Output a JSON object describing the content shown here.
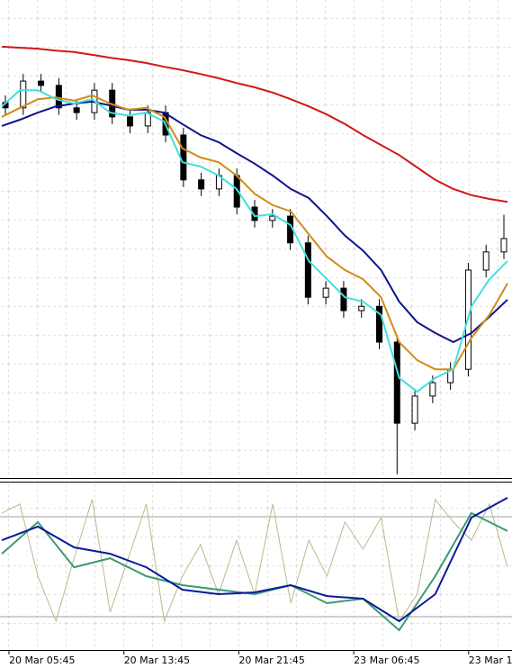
{
  "chart_data": [
    {
      "type": "candlestick",
      "grid": true,
      "ylim": [
        0,
        100
      ],
      "open": [
        78.5,
        77.4,
        83.0,
        82.1,
        77.4,
        76.4,
        81.1,
        75.5,
        73.6,
        76.4,
        71.7,
        62.3,
        60.4,
        63.2,
        56.6,
        53.8,
        54.7,
        49.1,
        37.7,
        39.6,
        34.9,
        35.8,
        28.3,
        11.3,
        17.0,
        19.8,
        22.6,
        43.4,
        47.2
      ],
      "high": [
        80.0,
        84.5,
        84.5,
        83.6,
        78.9,
        82.6,
        82.6,
        77.0,
        77.9,
        77.9,
        73.2,
        63.8,
        64.7,
        64.7,
        58.1,
        56.2,
        56.2,
        50.6,
        41.1,
        41.1,
        37.3,
        37.3,
        29.8,
        18.5,
        21.3,
        24.1,
        44.9,
        48.7,
        55.0
      ],
      "low": [
        75.9,
        75.9,
        80.6,
        75.9,
        74.9,
        74.9,
        74.0,
        72.1,
        72.1,
        70.2,
        60.8,
        58.9,
        58.9,
        55.1,
        52.3,
        52.3,
        47.6,
        36.2,
        36.2,
        33.4,
        33.4,
        26.8,
        0.6,
        9.8,
        15.5,
        18.3,
        21.1,
        41.9,
        45.7
      ],
      "close": [
        77.4,
        83.0,
        82.1,
        77.4,
        76.4,
        81.1,
        75.5,
        73.6,
        76.4,
        71.7,
        62.3,
        60.4,
        63.2,
        56.6,
        53.8,
        54.7,
        49.1,
        37.7,
        39.6,
        34.9,
        35.8,
        28.3,
        11.3,
        17.0,
        19.8,
        22.6,
        43.4,
        47.2,
        50.0
      ],
      "series": [
        {
          "color": "#d01818",
          "values": [
            90.2,
            90.0,
            89.8,
            89.4,
            89.1,
            88.5,
            87.9,
            87.4,
            86.8,
            86.0,
            85.3,
            84.5,
            83.6,
            82.6,
            81.7,
            80.6,
            79.2,
            77.7,
            76.0,
            74.0,
            71.7,
            69.6,
            67.5,
            64.9,
            62.3,
            60.4,
            59.1,
            58.3,
            57.7
          ]
        },
        {
          "color": "#10148c",
          "values": [
            73.6,
            74.9,
            76.4,
            77.7,
            78.3,
            78.7,
            77.9,
            77.0,
            77.0,
            76.4,
            74.0,
            71.7,
            70.2,
            67.9,
            65.7,
            63.2,
            60.4,
            58.5,
            54.7,
            50.6,
            47.5,
            43.4,
            36.8,
            32.5,
            30.2,
            28.3,
            30.2,
            33.6,
            37.2
          ]
        },
        {
          "color": "#d08c18",
          "values": [
            75.5,
            77.4,
            79.2,
            79.6,
            78.9,
            80.0,
            78.3,
            77.0,
            77.4,
            75.5,
            68.9,
            67.0,
            66.0,
            63.2,
            59.4,
            57.0,
            55.7,
            50.9,
            46.2,
            43.4,
            41.5,
            37.7,
            28.3,
            24.5,
            22.6,
            22.6,
            29.2,
            34.0,
            40.6
          ]
        },
        {
          "color": "#40e0e0",
          "values": [
            77.7,
            81.1,
            81.1,
            79.2,
            78.3,
            79.2,
            76.4,
            75.8,
            76.4,
            74.5,
            66.0,
            65.1,
            63.2,
            60.4,
            54.7,
            55.1,
            52.8,
            45.3,
            41.5,
            37.7,
            36.8,
            34.0,
            20.8,
            17.9,
            20.8,
            22.6,
            35.8,
            41.5,
            45.3
          ]
        }
      ]
    },
    {
      "type": "line",
      "grid": true,
      "ylim": [
        0,
        100
      ],
      "levels": [
        20,
        80
      ],
      "series": [
        {
          "color": "#b4bc8c",
          "values": [
            82.2,
            87.6,
            44.3,
            17.3,
            55.1,
            90.3,
            22.7,
            55.1,
            87.6,
            17.3,
            44.3,
            63.2,
            33.5,
            65.9,
            33.5,
            87.6,
            28.1,
            65.9,
            44.3,
            76.8,
            60.5,
            79.5,
            17.3,
            33.5,
            90.3,
            76.8,
            65.9,
            87.6,
            49.7
          ]
        },
        {
          "color": "#3a9a70",
          "values": [
            57.8,
            76.8,
            49.7,
            55.1,
            44.3,
            38.9,
            36.2,
            33.5,
            38.9,
            28.1,
            30.8,
            11.9,
            44.3,
            82.2,
            71.4
          ]
        },
        {
          "color": "#0a1a9a",
          "values": [
            65.9,
            74.1,
            61.6,
            57.8,
            49.7,
            36.2,
            33.5,
            34.6,
            38.9,
            32.4,
            30.8,
            17.3,
            33.5,
            79.5,
            91.4
          ]
        }
      ],
      "x_labels": [
        "20 Mar 05:45",
        "20 Mar 13:45",
        "20 Mar 21:45",
        "23 Mar 06:45",
        "23 Mar 1"
      ]
    }
  ]
}
